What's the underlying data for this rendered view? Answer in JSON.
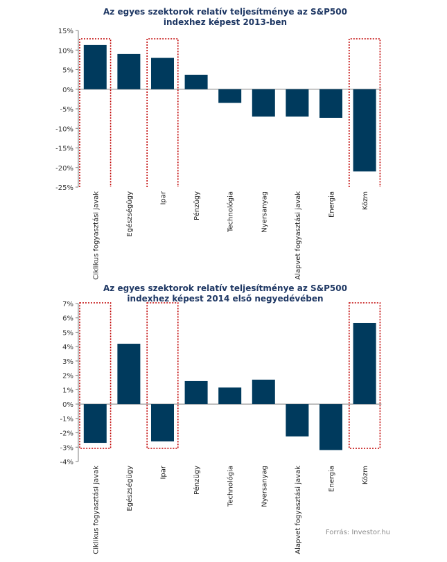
{
  "colors": {
    "bar": "#003a5d",
    "highlight": "#c00000",
    "title": "#1f3864",
    "axis": "#7f7f7f",
    "source": "#8c8c8c"
  },
  "source": "Forrás: Investor.hu",
  "chart_data": [
    {
      "type": "bar",
      "title_lines": [
        "Az egyes szektorok  relatív teljesítménye  az S&P500",
        "indexhez képest  2013-ben"
      ],
      "categories": [
        "Ciklikus fogyasztási javak",
        "Egészségügy",
        "Ipar",
        "Pénzügy",
        "Technológia",
        "Nyersanyag",
        "Alapvet fogyasztási javak",
        "Energia",
        "Közm"
      ],
      "values": [
        11.3,
        9.0,
        8.0,
        3.7,
        -3.5,
        -7.0,
        -7.0,
        -7.3,
        -21.0
      ],
      "ylim": [
        -25,
        15
      ],
      "yticks": [
        -25,
        -20,
        -15,
        -10,
        -5,
        0,
        5,
        10,
        15
      ],
      "ytick_labels": [
        "-25%",
        "-20%",
        "-15%",
        "-10%",
        "-5%",
        "0%",
        "5%",
        "10%",
        "15%"
      ],
      "highlighted_categories": [
        "Ciklikus fogyasztási javak",
        "Ipar",
        "Közm"
      ],
      "grid": false,
      "legend": "none"
    },
    {
      "type": "bar",
      "title_lines": [
        "Az egyes szektorok  relatív teljesítménye  az S&P500",
        "indexhez képest  2014 első negyedévében"
      ],
      "categories": [
        "Ciklikus fogyasztási javak",
        "Egészségügy",
        "Ipar",
        "Pénzügy",
        "Technológia",
        "Nyersanyag",
        "Alapvet fogyasztási javak",
        "Energia",
        "Közm"
      ],
      "values": [
        -2.7,
        4.2,
        -2.6,
        1.6,
        1.15,
        1.7,
        -2.25,
        -3.2,
        5.65
      ],
      "ylim": [
        -4,
        7
      ],
      "yticks": [
        -4,
        -3,
        -2,
        -1,
        0,
        1,
        2,
        3,
        4,
        5,
        6,
        7
      ],
      "ytick_labels": [
        "-4%",
        "-3%",
        "-2%",
        "-1%",
        "0%",
        "1%",
        "2%",
        "3%",
        "4%",
        "5%",
        "6%",
        "7%"
      ],
      "highlighted_categories": [
        "Ciklikus fogyasztási javak",
        "Ipar",
        "Közm"
      ],
      "grid": false,
      "legend": "none"
    }
  ]
}
